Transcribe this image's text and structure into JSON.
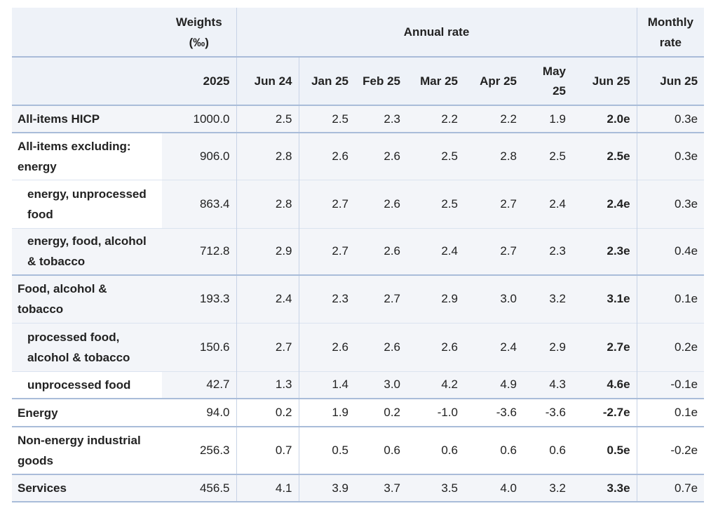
{
  "header": {
    "weights_label": "Weights (‰)",
    "annual_rate_label": "Annual rate",
    "monthly_rate_label": "Monthly rate",
    "weights_year": "2025",
    "annual_months": [
      "Jun 24",
      "Jan 25",
      "Feb 25",
      "Mar 25",
      "Apr 25",
      "May 25",
      "Jun 25"
    ],
    "monthly_month": "Jun 25"
  },
  "rows": [
    {
      "label": "All-items HICP",
      "weight": "1000.0",
      "annual": [
        "2.5",
        "2.5",
        "2.3",
        "2.2",
        "2.2",
        "1.9",
        "2.0e"
      ],
      "monthly": "0.3e"
    },
    {
      "label": "All-items excluding: energy",
      "weight": "906.0",
      "annual": [
        "2.8",
        "2.6",
        "2.6",
        "2.5",
        "2.8",
        "2.5",
        "2.5e"
      ],
      "monthly": "0.3e"
    },
    {
      "label": "energy, unprocessed food",
      "weight": "863.4",
      "annual": [
        "2.8",
        "2.7",
        "2.6",
        "2.5",
        "2.7",
        "2.4",
        "2.4e"
      ],
      "monthly": "0.3e"
    },
    {
      "label": "energy, food, alcohol & tobacco",
      "weight": "712.8",
      "annual": [
        "2.9",
        "2.7",
        "2.6",
        "2.4",
        "2.7",
        "2.3",
        "2.3e"
      ],
      "monthly": "0.4e"
    },
    {
      "label": "Food, alcohol & tobacco",
      "weight": "193.3",
      "annual": [
        "2.4",
        "2.3",
        "2.7",
        "2.9",
        "3.0",
        "3.2",
        "3.1e"
      ],
      "monthly": "0.1e"
    },
    {
      "label": "processed food, alcohol & tobacco",
      "weight": "150.6",
      "annual": [
        "2.7",
        "2.6",
        "2.6",
        "2.6",
        "2.4",
        "2.9",
        "2.7e"
      ],
      "monthly": "0.2e"
    },
    {
      "label": "unprocessed food",
      "weight": "42.7",
      "annual": [
        "1.3",
        "1.4",
        "3.0",
        "4.2",
        "4.9",
        "4.3",
        "4.6e"
      ],
      "monthly": "-0.1e"
    },
    {
      "label": "Energy",
      "weight": "94.0",
      "annual": [
        "0.2",
        "1.9",
        "0.2",
        "-1.0",
        "-3.6",
        "-3.6",
        "-2.7e"
      ],
      "monthly": "0.1e"
    },
    {
      "label": "Non-energy industrial goods",
      "weight": "256.3",
      "annual": [
        "0.7",
        "0.5",
        "0.6",
        "0.6",
        "0.6",
        "0.6",
        "0.5e"
      ],
      "monthly": "-0.2e"
    },
    {
      "label": "Services",
      "weight": "456.5",
      "annual": [
        "4.1",
        "3.9",
        "3.7",
        "3.5",
        "4.0",
        "3.2",
        "3.3e"
      ],
      "monthly": "0.7e"
    }
  ]
}
